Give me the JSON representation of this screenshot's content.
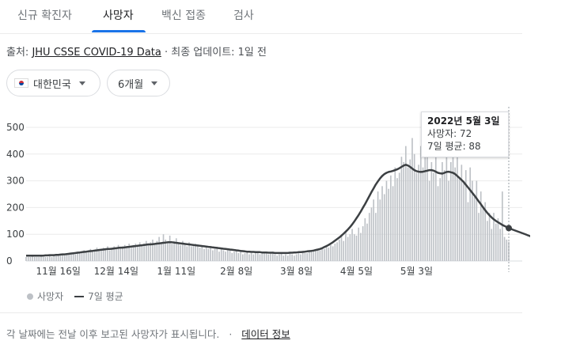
{
  "tabs": [
    {
      "label": "신규 확진자",
      "active": false
    },
    {
      "label": "사망자",
      "active": true
    },
    {
      "label": "백신 접종",
      "active": false
    },
    {
      "label": "검사",
      "active": false
    }
  ],
  "colors": {
    "accent": "#1a73e8",
    "bar": "#bdc1c6",
    "line": "#3c4043"
  },
  "source": {
    "prefix": "출처: ",
    "link": "JHU CSSE COVID-19 Data",
    "suffix": " · 최종 업데이트: 1일 전"
  },
  "filters": {
    "country": {
      "label": "대한민국",
      "icon": "korea-flag-icon"
    },
    "period": {
      "label": "6개월"
    }
  },
  "tooltip": {
    "date": "2022년 5월 3일",
    "deaths_label": "사망자: 72",
    "avg_label": "7일 평균: 88"
  },
  "legend": {
    "bars": "사망자",
    "line": "7일 평균"
  },
  "footer": {
    "note": "각 날짜에는 전날 이후 보고된 사망자가 표시됩니다.",
    "separator": "·",
    "link": "데이터 정보"
  },
  "chart_data": {
    "type": "bar",
    "ylim": [
      0,
      500
    ],
    "yticks": [
      0,
      100,
      200,
      300,
      400,
      500
    ],
    "xticks": [
      "11월 16일",
      "12월 14일",
      "1월 11일",
      "2월 8일",
      "3월 8일",
      "4월 5일",
      "5월 3일"
    ],
    "series": [
      {
        "name": "사망자",
        "values": [
          15,
          15,
          15,
          20,
          15,
          15,
          15,
          20,
          15,
          15,
          15,
          25,
          15,
          20,
          20,
          25,
          20,
          25,
          20,
          25,
          30,
          25,
          30,
          25,
          35,
          30,
          35,
          40,
          35,
          40,
          45,
          35,
          40,
          50,
          45,
          40,
          50,
          45,
          55,
          40,
          50,
          55,
          45,
          60,
          50,
          55,
          60,
          55,
          65,
          50,
          60,
          65,
          55,
          70,
          60,
          65,
          75,
          60,
          70,
          80,
          65,
          75,
          90,
          70,
          100,
          80,
          70,
          95,
          65,
          75,
          85,
          70,
          60,
          75,
          65,
          55,
          70,
          55,
          60,
          65,
          55,
          50,
          60,
          45,
          55,
          45,
          50,
          40,
          45,
          50,
          35,
          45,
          40,
          35,
          40,
          45,
          30,
          35,
          40,
          30,
          35,
          25,
          30,
          35,
          25,
          30,
          25,
          30,
          35,
          25,
          30,
          35,
          30,
          25,
          30,
          35,
          25,
          20,
          25,
          30,
          20,
          25,
          20,
          30,
          25,
          20,
          25,
          30,
          25,
          35,
          30,
          30,
          35,
          40,
          35,
          40,
          45,
          40,
          50,
          45,
          55,
          50,
          60,
          55,
          65,
          70,
          80,
          95,
          75,
          110,
          90,
          100,
          120,
          100,
          95,
          125,
          105,
          130,
          160,
          140,
          180,
          200,
          230,
          180,
          260,
          230,
          280,
          250,
          300,
          270,
          320,
          280,
          350,
          310,
          330,
          390,
          370,
          430,
          350,
          380,
          460,
          400,
          330,
          360,
          430,
          350,
          470,
          390,
          300,
          370,
          330,
          430,
          280,
          310,
          370,
          340,
          400,
          300,
          370,
          390,
          350,
          400,
          310,
          360,
          300,
          340,
          220,
          350,
          300,
          240,
          300,
          180,
          260,
          200,
          220,
          150,
          180,
          120,
          180,
          140,
          160,
          120,
          260,
          90,
          80,
          72
        ]
      },
      {
        "name": "7일 평균",
        "values": [
          20,
          20,
          20,
          20,
          20,
          20,
          20,
          20,
          20,
          21,
          21,
          22,
          22,
          22,
          23,
          23,
          24,
          25,
          25,
          26,
          27,
          28,
          29,
          30,
          31,
          32,
          33,
          34,
          35,
          36,
          37,
          38,
          39,
          40,
          41,
          42,
          43,
          44,
          45,
          45,
          46,
          47,
          48,
          49,
          50,
          50,
          51,
          52,
          53,
          54,
          55,
          56,
          57,
          58,
          59,
          60,
          61,
          62,
          62,
          63,
          64,
          65,
          66,
          67,
          68,
          69,
          70,
          70,
          70,
          69,
          68,
          67,
          66,
          65,
          64,
          63,
          62,
          61,
          60,
          59,
          58,
          57,
          56,
          55,
          54,
          53,
          52,
          51,
          50,
          49,
          48,
          47,
          46,
          45,
          44,
          43,
          42,
          41,
          40,
          39,
          38,
          37,
          36,
          35,
          35,
          34,
          34,
          33,
          33,
          33,
          32,
          32,
          32,
          31,
          31,
          31,
          30,
          30,
          30,
          30,
          30,
          30,
          30,
          31,
          31,
          32,
          32,
          33,
          33,
          34,
          35,
          36,
          37,
          38,
          39,
          41,
          43,
          45,
          48,
          52,
          56,
          60,
          65,
          70,
          76,
          82,
          88,
          95,
          102,
          110,
          118,
          127,
          137,
          148,
          160,
          172,
          185,
          199,
          213,
          228,
          243,
          258,
          272,
          286,
          298,
          309,
          318,
          325,
          330,
          333,
          335,
          337,
          340,
          343,
          347,
          352,
          357,
          360,
          357,
          352,
          346,
          340,
          336,
          334,
          333,
          334,
          336,
          338,
          340,
          340,
          338,
          334,
          330,
          328,
          327,
          330,
          333,
          334,
          332,
          330,
          325,
          318,
          311,
          303,
          295,
          285,
          275,
          265,
          255,
          245,
          234,
          223,
          212,
          201,
          190,
          180,
          171,
          163,
          156,
          150,
          145,
          140,
          135,
          131,
          127,
          123,
          120,
          117,
          114,
          111,
          108,
          105,
          102,
          99,
          96,
          93,
          91,
          89,
          88
        ]
      }
    ]
  }
}
